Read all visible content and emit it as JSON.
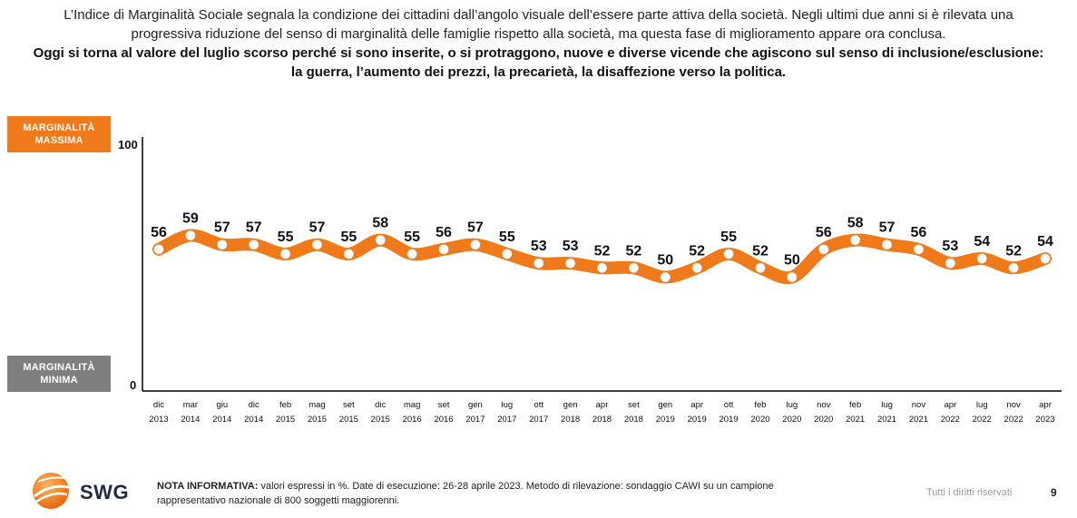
{
  "intro": {
    "line1": "L’Indice di Marginalità Sociale segnala la condizione dei cittadini dall’angolo visuale dell’essere parte attiva della società. Negli ultimi due anni si è rilevata una",
    "line2": "progressiva riduzione del senso di marginalità delle famiglie rispetto alla società, ma questa fase di miglioramento appare ora conclusa.",
    "bold1": "Oggi si torna al valore del luglio scorso perché si sono inserite, o si protraggono, nuove e diverse vicende che agiscono sul senso di inclusione/esclusione:",
    "bold2": "la guerra, l’aumento dei prezzi, la precarietà, la disaffezione verso la politica."
  },
  "legend_boxes": {
    "max_line1": "MARGINALITÀ",
    "max_line2": "MASSIMA",
    "min_line1": "MARGINALITÀ",
    "min_line2": "MINIMA",
    "max_color": "#F07A1A",
    "min_color": "#7f7f7f"
  },
  "chart_data": {
    "type": "line",
    "title": "",
    "xlabel": "",
    "ylabel": "",
    "ylim": [
      0,
      100
    ],
    "y_ticks": [
      "100",
      "0"
    ],
    "line_color": "#F07A1A",
    "categories": [
      [
        "dic",
        "2013"
      ],
      [
        "mar",
        "2014"
      ],
      [
        "giu",
        "2014"
      ],
      [
        "dic",
        "2014"
      ],
      [
        "feb",
        "2015"
      ],
      [
        "mag",
        "2015"
      ],
      [
        "set",
        "2015"
      ],
      [
        "dic",
        "2015"
      ],
      [
        "mag",
        "2016"
      ],
      [
        "set",
        "2016"
      ],
      [
        "gen",
        "2017"
      ],
      [
        "lug",
        "2017"
      ],
      [
        "ott",
        "2017"
      ],
      [
        "gen",
        "2018"
      ],
      [
        "apr",
        "2018"
      ],
      [
        "set",
        "2018"
      ],
      [
        "gen",
        "2019"
      ],
      [
        "apr",
        "2019"
      ],
      [
        "ott",
        "2019"
      ],
      [
        "feb",
        "2020"
      ],
      [
        "lug",
        "2020"
      ],
      [
        "nov",
        "2020"
      ],
      [
        "feb",
        "2021"
      ],
      [
        "lug",
        "2021"
      ],
      [
        "nov",
        "2021"
      ],
      [
        "apr",
        "2022"
      ],
      [
        "lug",
        "2022"
      ],
      [
        "nov",
        "2022"
      ],
      [
        "apr",
        "2023"
      ]
    ],
    "values": [
      56,
      59,
      57,
      57,
      55,
      57,
      55,
      58,
      55,
      56,
      57,
      55,
      53,
      53,
      52,
      52,
      50,
      52,
      55,
      52,
      50,
      56,
      58,
      57,
      56,
      53,
      54,
      52,
      54
    ]
  },
  "footer": {
    "note_label": "NOTA INFORMATIVA:",
    "note_text": " valori espressi in %. Date di esecuzione: 26-28 aprile 2023. Metodo di rilevazione: sondaggio CAWI su un campione",
    "note_text2": "rappresentativo nazionale di 800 soggetti maggiorenni.",
    "rights": "Tutti i diritti riservati",
    "page": "9",
    "logo_text": "SWG"
  }
}
